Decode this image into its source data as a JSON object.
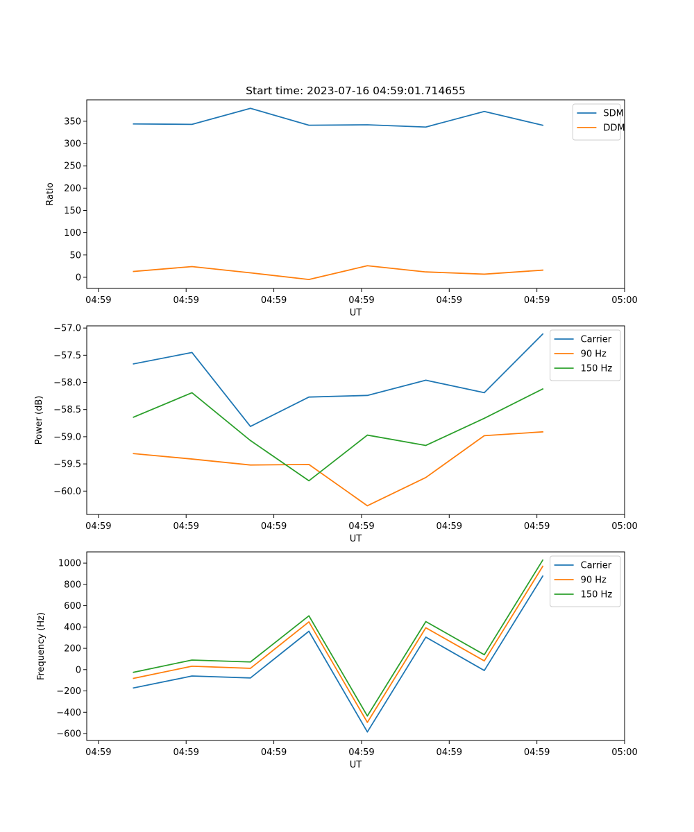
{
  "figure_title": "Start time: 2023-07-16 04:59:01.714655",
  "colors": {
    "blue": "#1f77b4",
    "orange": "#ff7f0e",
    "green": "#2ca02c"
  },
  "chart_data": [
    {
      "type": "line",
      "title": "Start time: 2023-07-16 04:59:01.714655",
      "xlabel": "UT",
      "ylabel": "Ratio",
      "x": [
        1,
        2,
        3,
        4,
        5,
        6,
        7,
        8
      ],
      "xlim": [
        0.2,
        9.4
      ],
      "x_ticks": [
        0.4,
        1.9,
        3.4,
        4.9,
        6.4,
        7.9,
        9.4
      ],
      "x_tick_labels": [
        "04:59",
        "04:59",
        "04:59",
        "04:59",
        "04:59",
        "04:59",
        "05:00"
      ],
      "ylim": [
        -25,
        398
      ],
      "y_ticks": [
        0,
        50,
        100,
        150,
        200,
        250,
        300,
        350
      ],
      "y_tick_labels": [
        "0",
        "50",
        "100",
        "150",
        "200",
        "250",
        "300",
        "350"
      ],
      "legend_position": "top-right",
      "series": [
        {
          "name": "SDM",
          "color": "#1f77b4",
          "values": [
            344,
            343,
            379,
            341,
            342,
            337,
            372,
            341
          ]
        },
        {
          "name": "DDM",
          "color": "#ff7f0e",
          "values": [
            13,
            24,
            10,
            -5,
            26,
            12,
            7,
            16
          ]
        }
      ]
    },
    {
      "type": "line",
      "title": "",
      "xlabel": "UT",
      "ylabel": "Power (dB)",
      "x": [
        1,
        2,
        3,
        4,
        5,
        6,
        7,
        8
      ],
      "xlim": [
        0.2,
        9.4
      ],
      "x_ticks": [
        0.4,
        1.9,
        3.4,
        4.9,
        6.4,
        7.9,
        9.4
      ],
      "x_tick_labels": [
        "04:59",
        "04:59",
        "04:59",
        "04:59",
        "04:59",
        "04:59",
        "05:00"
      ],
      "ylim": [
        -60.43,
        -56.96
      ],
      "y_ticks": [
        -60.0,
        -59.5,
        -59.0,
        -58.5,
        -58.0,
        -57.5,
        -57.0
      ],
      "y_tick_labels": [
        "−60.0",
        "−59.5",
        "−59.0",
        "−58.5",
        "−58.0",
        "−57.5",
        "−57.0"
      ],
      "legend_position": "top-right",
      "series": [
        {
          "name": "Carrier",
          "color": "#1f77b4",
          "values": [
            -57.66,
            -57.45,
            -58.81,
            -58.27,
            -58.24,
            -57.96,
            -58.19,
            -57.11
          ]
        },
        {
          "name": "90 Hz",
          "color": "#ff7f0e",
          "values": [
            -59.31,
            -59.41,
            -59.52,
            -59.51,
            -60.27,
            -59.75,
            -58.98,
            -58.91
          ]
        },
        {
          "name": "150 Hz",
          "color": "#2ca02c",
          "values": [
            -58.64,
            -58.19,
            -59.07,
            -59.81,
            -58.97,
            -59.16,
            -58.66,
            -58.12
          ]
        }
      ]
    },
    {
      "type": "line",
      "title": "",
      "xlabel": "UT",
      "ylabel": "Frequency (Hz)",
      "x": [
        1,
        2,
        3,
        4,
        5,
        6,
        7,
        8
      ],
      "xlim": [
        0.2,
        9.4
      ],
      "x_ticks": [
        0.4,
        1.9,
        3.4,
        4.9,
        6.4,
        7.9,
        9.4
      ],
      "x_tick_labels": [
        "04:59",
        "04:59",
        "04:59",
        "04:59",
        "04:59",
        "04:59",
        "05:00"
      ],
      "ylim": [
        -665,
        1105
      ],
      "y_ticks": [
        -600,
        -400,
        -200,
        0,
        200,
        400,
        600,
        800,
        1000
      ],
      "y_tick_labels": [
        "−600",
        "−400",
        "−200",
        "0",
        "200",
        "400",
        "600",
        "800",
        "1000"
      ],
      "legend_position": "top-right",
      "series": [
        {
          "name": "Carrier",
          "color": "#1f77b4",
          "values": [
            -172,
            -60,
            -78,
            360,
            -585,
            305,
            -8,
            878
          ]
        },
        {
          "name": "90 Hz",
          "color": "#ff7f0e",
          "values": [
            -82,
            32,
            12,
            448,
            -495,
            393,
            82,
            970
          ]
        },
        {
          "name": "150 Hz",
          "color": "#2ca02c",
          "values": [
            -25,
            90,
            72,
            505,
            -435,
            451,
            140,
            1028
          ]
        }
      ]
    }
  ]
}
